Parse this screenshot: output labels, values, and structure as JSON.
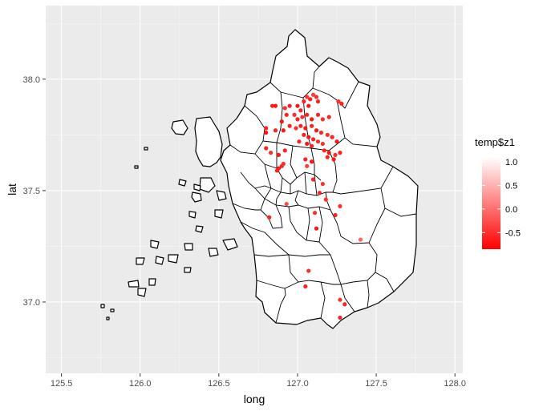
{
  "chart_data": {
    "type": "scatter",
    "title": "",
    "xlabel": "long",
    "ylabel": "lat",
    "xlim": [
      125.4,
      128.05
    ],
    "ylim": [
      36.68,
      38.33
    ],
    "x_ticks": [
      125.5,
      126.0,
      126.5,
      127.0,
      127.5,
      128.0
    ],
    "x_tick_labels": [
      "125.5",
      "126.0",
      "126.5",
      "127.0",
      "127.5",
      "128.0"
    ],
    "y_ticks": [
      37.0,
      37.5,
      38.0
    ],
    "y_tick_labels": [
      "37.0",
      "37.5",
      "38.0"
    ],
    "legend": {
      "title": "temp$z1",
      "position": "right",
      "range": [
        -0.85,
        1.1
      ],
      "ticks": [
        1.0,
        0.5,
        0.0,
        -0.5
      ],
      "tick_labels": [
        "1.0",
        "0.5",
        "0.0",
        "-0.5"
      ],
      "low_color": "#ff0000",
      "high_color": "#ffffff"
    },
    "colors": {
      "panel_background": "#ebebeb",
      "grid_major": "#ffffff",
      "grid_minor": "#f5f5f5",
      "map_fill": "#ffffff",
      "map_stroke": "#000000"
    },
    "points": [
      {
        "x": 126.84,
        "y": 37.88,
        "z": -0.6
      },
      {
        "x": 126.86,
        "y": 37.88,
        "z": -0.7
      },
      {
        "x": 126.92,
        "y": 37.87,
        "z": -0.5
      },
      {
        "x": 126.95,
        "y": 37.88,
        "z": -0.6
      },
      {
        "x": 127.0,
        "y": 37.88,
        "z": -0.7
      },
      {
        "x": 127.04,
        "y": 37.9,
        "z": -0.6
      },
      {
        "x": 127.06,
        "y": 37.92,
        "z": -0.5
      },
      {
        "x": 127.08,
        "y": 37.91,
        "z": -0.6
      },
      {
        "x": 127.1,
        "y": 37.93,
        "z": -0.4
      },
      {
        "x": 127.12,
        "y": 37.92,
        "z": -0.5
      },
      {
        "x": 127.13,
        "y": 37.9,
        "z": -0.6
      },
      {
        "x": 127.07,
        "y": 37.88,
        "z": -0.7
      },
      {
        "x": 127.02,
        "y": 37.86,
        "z": -0.6
      },
      {
        "x": 126.98,
        "y": 37.84,
        "z": -0.5
      },
      {
        "x": 126.93,
        "y": 37.84,
        "z": -0.6
      },
      {
        "x": 126.9,
        "y": 37.81,
        "z": -0.7
      },
      {
        "x": 127.0,
        "y": 37.82,
        "z": -0.6
      },
      {
        "x": 127.03,
        "y": 37.83,
        "z": -0.5
      },
      {
        "x": 127.06,
        "y": 37.84,
        "z": -0.6
      },
      {
        "x": 127.09,
        "y": 37.82,
        "z": -0.7
      },
      {
        "x": 127.13,
        "y": 37.84,
        "z": -0.6
      },
      {
        "x": 127.16,
        "y": 37.82,
        "z": -0.5
      },
      {
        "x": 127.2,
        "y": 37.83,
        "z": -0.6
      },
      {
        "x": 127.26,
        "y": 37.9,
        "z": -0.5
      },
      {
        "x": 127.28,
        "y": 37.89,
        "z": -0.6
      },
      {
        "x": 126.8,
        "y": 37.78,
        "z": -0.6
      },
      {
        "x": 126.8,
        "y": 37.76,
        "z": -0.7
      },
      {
        "x": 126.86,
        "y": 37.77,
        "z": -0.6
      },
      {
        "x": 126.91,
        "y": 37.77,
        "z": -0.7
      },
      {
        "x": 126.95,
        "y": 37.79,
        "z": -0.6
      },
      {
        "x": 126.99,
        "y": 37.78,
        "z": -0.5
      },
      {
        "x": 127.02,
        "y": 37.79,
        "z": -0.6
      },
      {
        "x": 127.05,
        "y": 37.78,
        "z": -0.7
      },
      {
        "x": 127.09,
        "y": 37.79,
        "z": -0.6
      },
      {
        "x": 127.12,
        "y": 37.77,
        "z": -0.7
      },
      {
        "x": 127.15,
        "y": 37.76,
        "z": -0.6
      },
      {
        "x": 127.19,
        "y": 37.75,
        "z": -0.5
      },
      {
        "x": 127.22,
        "y": 37.74,
        "z": -0.6
      },
      {
        "x": 127.25,
        "y": 37.72,
        "z": -0.7
      },
      {
        "x": 127.04,
        "y": 37.75,
        "z": -0.6
      },
      {
        "x": 127.07,
        "y": 37.74,
        "z": -0.7
      },
      {
        "x": 127.1,
        "y": 37.73,
        "z": -0.6
      },
      {
        "x": 127.13,
        "y": 37.72,
        "z": -0.5
      },
      {
        "x": 127.01,
        "y": 37.72,
        "z": -0.6
      },
      {
        "x": 127.06,
        "y": 37.71,
        "z": -0.7
      },
      {
        "x": 127.09,
        "y": 37.7,
        "z": -0.6
      },
      {
        "x": 127.16,
        "y": 37.71,
        "z": -0.5
      },
      {
        "x": 126.8,
        "y": 37.69,
        "z": -0.6
      },
      {
        "x": 126.83,
        "y": 37.67,
        "z": -0.5
      },
      {
        "x": 126.88,
        "y": 37.66,
        "z": -0.7
      },
      {
        "x": 126.92,
        "y": 37.68,
        "z": -0.6
      },
      {
        "x": 127.17,
        "y": 37.68,
        "z": -0.6
      },
      {
        "x": 127.2,
        "y": 37.67,
        "z": -0.7
      },
      {
        "x": 127.24,
        "y": 37.66,
        "z": -0.5
      },
      {
        "x": 127.27,
        "y": 37.67,
        "z": -0.6
      },
      {
        "x": 127.23,
        "y": 37.64,
        "z": -0.7
      },
      {
        "x": 127.19,
        "y": 37.65,
        "z": -0.6
      },
      {
        "x": 127.05,
        "y": 37.64,
        "z": -0.6
      },
      {
        "x": 127.09,
        "y": 37.63,
        "z": -0.7
      },
      {
        "x": 126.9,
        "y": 37.61,
        "z": -0.6
      },
      {
        "x": 126.88,
        "y": 37.6,
        "z": -0.7
      },
      {
        "x": 126.87,
        "y": 37.59,
        "z": -0.6
      },
      {
        "x": 126.91,
        "y": 37.62,
        "z": -0.5
      },
      {
        "x": 127.1,
        "y": 37.55,
        "z": -0.6
      },
      {
        "x": 127.16,
        "y": 37.53,
        "z": -0.5
      },
      {
        "x": 127.06,
        "y": 37.61,
        "z": -0.4
      },
      {
        "x": 127.14,
        "y": 37.49,
        "z": -0.6
      },
      {
        "x": 127.18,
        "y": 37.46,
        "z": -0.5
      },
      {
        "x": 126.93,
        "y": 37.44,
        "z": -0.3
      },
      {
        "x": 126.82,
        "y": 37.38,
        "z": -0.6
      },
      {
        "x": 127.11,
        "y": 37.4,
        "z": -0.5
      },
      {
        "x": 127.27,
        "y": 37.43,
        "z": -0.5
      },
      {
        "x": 127.24,
        "y": 37.39,
        "z": -0.6
      },
      {
        "x": 127.12,
        "y": 37.33,
        "z": -0.7
      },
      {
        "x": 127.4,
        "y": 37.28,
        "z": -0.1
      },
      {
        "x": 127.07,
        "y": 37.14,
        "z": -0.5
      },
      {
        "x": 127.05,
        "y": 37.07,
        "z": -0.6
      },
      {
        "x": 127.27,
        "y": 37.01,
        "z": -0.5
      },
      {
        "x": 127.3,
        "y": 36.99,
        "z": -0.6
      },
      {
        "x": 127.27,
        "y": 36.93,
        "z": -0.6
      }
    ]
  }
}
